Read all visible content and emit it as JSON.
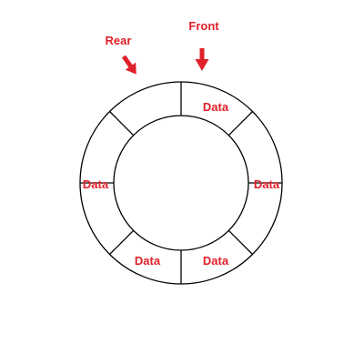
{
  "diagram": {
    "type": "circular-queue",
    "slot_count": 8,
    "pointers": {
      "rear": "Rear",
      "front": "Front"
    },
    "slots": [
      "Data",
      "Data",
      "Data",
      "Data",
      "",
      "Data",
      "",
      ""
    ],
    "colors": {
      "label": "#e0202a",
      "stroke": "#000000",
      "arrow": "#e0202a"
    }
  }
}
